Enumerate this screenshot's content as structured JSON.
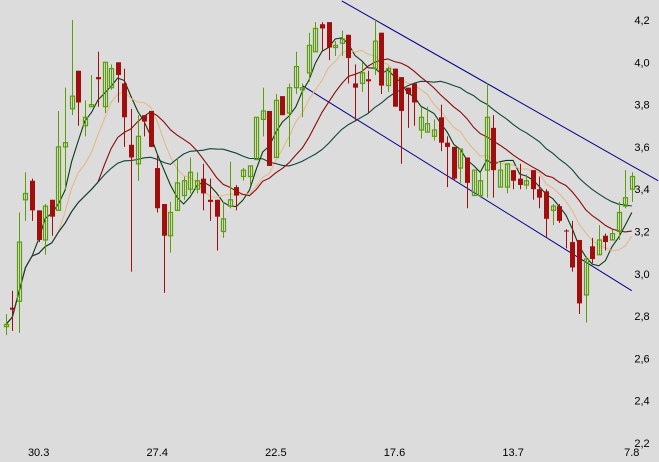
{
  "chart_data": {
    "type": "candlestick",
    "title": "",
    "xlabel": "",
    "ylabel": "",
    "ylim": [
      2.2,
      4.2
    ],
    "y_ticks": [
      "4,2",
      "4,0",
      "3,8",
      "3,6",
      "3,4",
      "3,2",
      "3,0",
      "2,8",
      "2,6",
      "2,4",
      "2,2"
    ],
    "y_tick_values": [
      4.2,
      4.0,
      3.8,
      3.6,
      3.4,
      3.2,
      3.0,
      2.8,
      2.6,
      2.4,
      2.2
    ],
    "y_axis_side": "right",
    "grid": false,
    "x_ticks": [
      {
        "label": "30.3",
        "candle": 5
      },
      {
        "label": "27.4",
        "candle": 23
      },
      {
        "label": "22.5",
        "candle": 41
      },
      {
        "label": "17.6",
        "candle": 59
      },
      {
        "label": "13.7",
        "candle": 77
      },
      {
        "label": "7.8",
        "candle": 95
      }
    ],
    "ohlc_fields": [
      "open",
      "high",
      "low",
      "close"
    ],
    "candles": [
      [
        2.75,
        2.81,
        2.71,
        2.76
      ],
      [
        2.84,
        2.92,
        2.73,
        2.83
      ],
      [
        2.87,
        3.29,
        2.72,
        3.15
      ],
      [
        3.35,
        3.48,
        3.25,
        3.38
      ],
      [
        3.44,
        3.45,
        3.25,
        3.3
      ],
      [
        3.3,
        3.3,
        3.15,
        3.16
      ],
      [
        3.16,
        3.33,
        3.09,
        3.32
      ],
      [
        3.35,
        3.35,
        3.18,
        3.27
      ],
      [
        3.3,
        3.77,
        3.3,
        3.6
      ],
      [
        3.6,
        3.88,
        3.4,
        3.62
      ],
      [
        3.78,
        4.2,
        3.75,
        3.84
      ],
      [
        3.96,
        3.96,
        3.7,
        3.81
      ],
      [
        3.7,
        3.82,
        3.65,
        3.74
      ],
      [
        3.79,
        3.94,
        3.79,
        3.8
      ],
      [
        3.93,
        4.05,
        3.79,
        3.92
      ],
      [
        3.79,
        4.0,
        3.76,
        4.0
      ],
      [
        3.88,
        3.99,
        3.87,
        3.97
      ],
      [
        4.0,
        4.0,
        3.81,
        3.94
      ],
      [
        3.9,
        3.97,
        3.6,
        3.74
      ],
      [
        3.61,
        3.78,
        3.01,
        3.55
      ],
      [
        3.52,
        3.75,
        3.44,
        3.65
      ],
      [
        3.75,
        3.75,
        3.65,
        3.72
      ],
      [
        3.77,
        3.77,
        3.6,
        3.6
      ],
      [
        3.5,
        3.56,
        3.29,
        3.31
      ],
      [
        3.33,
        3.33,
        2.91,
        3.18
      ],
      [
        3.18,
        3.34,
        3.1,
        3.29
      ],
      [
        3.3,
        3.55,
        3.3,
        3.43
      ],
      [
        3.37,
        3.46,
        3.35,
        3.44
      ],
      [
        3.4,
        3.55,
        3.38,
        3.48
      ],
      [
        3.4,
        3.48,
        3.38,
        3.44
      ],
      [
        3.45,
        3.52,
        3.3,
        3.38
      ],
      [
        3.35,
        3.45,
        3.25,
        3.34
      ],
      [
        3.35,
        3.35,
        3.11,
        3.27
      ],
      [
        3.2,
        3.34,
        3.17,
        3.26
      ],
      [
        3.32,
        3.53,
        3.31,
        3.35
      ],
      [
        3.41,
        3.42,
        3.3,
        3.37
      ],
      [
        3.46,
        3.5,
        3.44,
        3.49
      ],
      [
        3.46,
        3.51,
        3.42,
        3.51
      ],
      [
        3.54,
        3.74,
        3.54,
        3.74
      ],
      [
        3.73,
        3.88,
        3.65,
        3.77
      ],
      [
        3.77,
        3.77,
        3.51,
        3.51
      ],
      [
        3.55,
        3.85,
        3.55,
        3.82
      ],
      [
        3.84,
        3.84,
        3.75,
        3.75
      ],
      [
        3.76,
        3.9,
        3.6,
        3.88
      ],
      [
        3.88,
        4.05,
        3.85,
        3.98
      ],
      [
        3.87,
        3.9,
        3.74,
        3.88
      ],
      [
        3.95,
        4.14,
        3.91,
        4.08
      ],
      [
        4.05,
        4.19,
        4.05,
        4.16
      ],
      [
        4.18,
        4.19,
        4.05,
        4.16
      ],
      [
        4.19,
        4.19,
        4.01,
        4.07
      ],
      [
        4.07,
        4.1,
        4.03,
        4.08
      ],
      [
        4.09,
        4.15,
        4.03,
        4.11
      ],
      [
        4.13,
        4.13,
        3.9,
        4.02
      ],
      [
        3.9,
        3.99,
        3.72,
        3.88
      ],
      [
        3.9,
        4.0,
        3.86,
        3.95
      ],
      [
        3.92,
        3.96,
        3.76,
        3.91
      ],
      [
        3.97,
        4.2,
        3.94,
        4.1
      ],
      [
        4.14,
        4.14,
        3.85,
        3.89
      ],
      [
        3.89,
        3.98,
        3.86,
        3.97
      ],
      [
        3.97,
        3.97,
        3.79,
        3.79
      ],
      [
        3.93,
        3.93,
        3.52,
        3.77
      ],
      [
        3.88,
        3.88,
        3.69,
        3.85
      ],
      [
        3.9,
        3.9,
        3.7,
        3.81
      ],
      [
        3.68,
        3.79,
        3.64,
        3.74
      ],
      [
        3.67,
        3.79,
        3.67,
        3.71
      ],
      [
        3.65,
        3.73,
        3.63,
        3.68
      ],
      [
        3.74,
        3.8,
        3.58,
        3.62
      ],
      [
        3.62,
        3.65,
        3.41,
        3.6
      ],
      [
        3.6,
        3.6,
        3.44,
        3.45
      ],
      [
        3.5,
        3.59,
        3.43,
        3.59
      ],
      [
        3.55,
        3.55,
        3.31,
        3.43
      ],
      [
        3.37,
        3.49,
        3.37,
        3.49
      ],
      [
        3.37,
        3.48,
        3.36,
        3.44
      ],
      [
        3.49,
        3.9,
        3.36,
        3.74
      ],
      [
        3.69,
        3.75,
        3.36,
        3.49
      ],
      [
        3.41,
        3.53,
        3.41,
        3.49
      ],
      [
        3.41,
        3.52,
        3.38,
        3.52
      ],
      [
        3.49,
        3.49,
        3.4,
        3.44
      ],
      [
        3.45,
        3.52,
        3.4,
        3.42
      ],
      [
        3.42,
        3.47,
        3.4,
        3.44
      ],
      [
        3.49,
        3.49,
        3.35,
        3.4
      ],
      [
        3.4,
        3.46,
        3.31,
        3.36
      ],
      [
        3.39,
        3.4,
        3.17,
        3.26
      ],
      [
        3.3,
        3.33,
        3.23,
        3.32
      ],
      [
        3.32,
        3.33,
        3.24,
        3.25
      ],
      [
        3.205,
        3.21,
        3.12,
        3.2
      ],
      [
        3.15,
        3.25,
        3.01,
        3.03
      ],
      [
        3.16,
        3.16,
        2.81,
        2.86
      ],
      [
        2.9,
        3.08,
        2.77,
        3.07
      ],
      [
        3.13,
        3.17,
        3.05,
        3.07
      ],
      [
        3.09,
        3.23,
        3.09,
        3.16
      ],
      [
        3.18,
        3.19,
        3.11,
        3.15
      ],
      [
        3.16,
        3.21,
        3.16,
        3.19
      ],
      [
        3.2,
        3.34,
        3.16,
        3.29
      ],
      [
        3.32,
        3.49,
        3.31,
        3.36
      ],
      [
        3.4,
        3.48,
        3.34,
        3.46
      ]
    ],
    "moving_average_colors": [
      "#0d3a12",
      "#e6b987",
      "#8b0a0a",
      "#0b4638"
    ],
    "trend_channel": {
      "color": "#00008b",
      "upper": [
        [
          51,
          4.29
        ],
        [
          99,
          3.44
        ]
      ],
      "lower": [
        [
          45,
          3.89
        ],
        [
          95,
          2.92
        ]
      ]
    },
    "colors": {
      "up": "#5a9e0a",
      "down": "#a00e0e",
      "background": "#dcdcdc",
      "axis_text": "#000000"
    }
  }
}
